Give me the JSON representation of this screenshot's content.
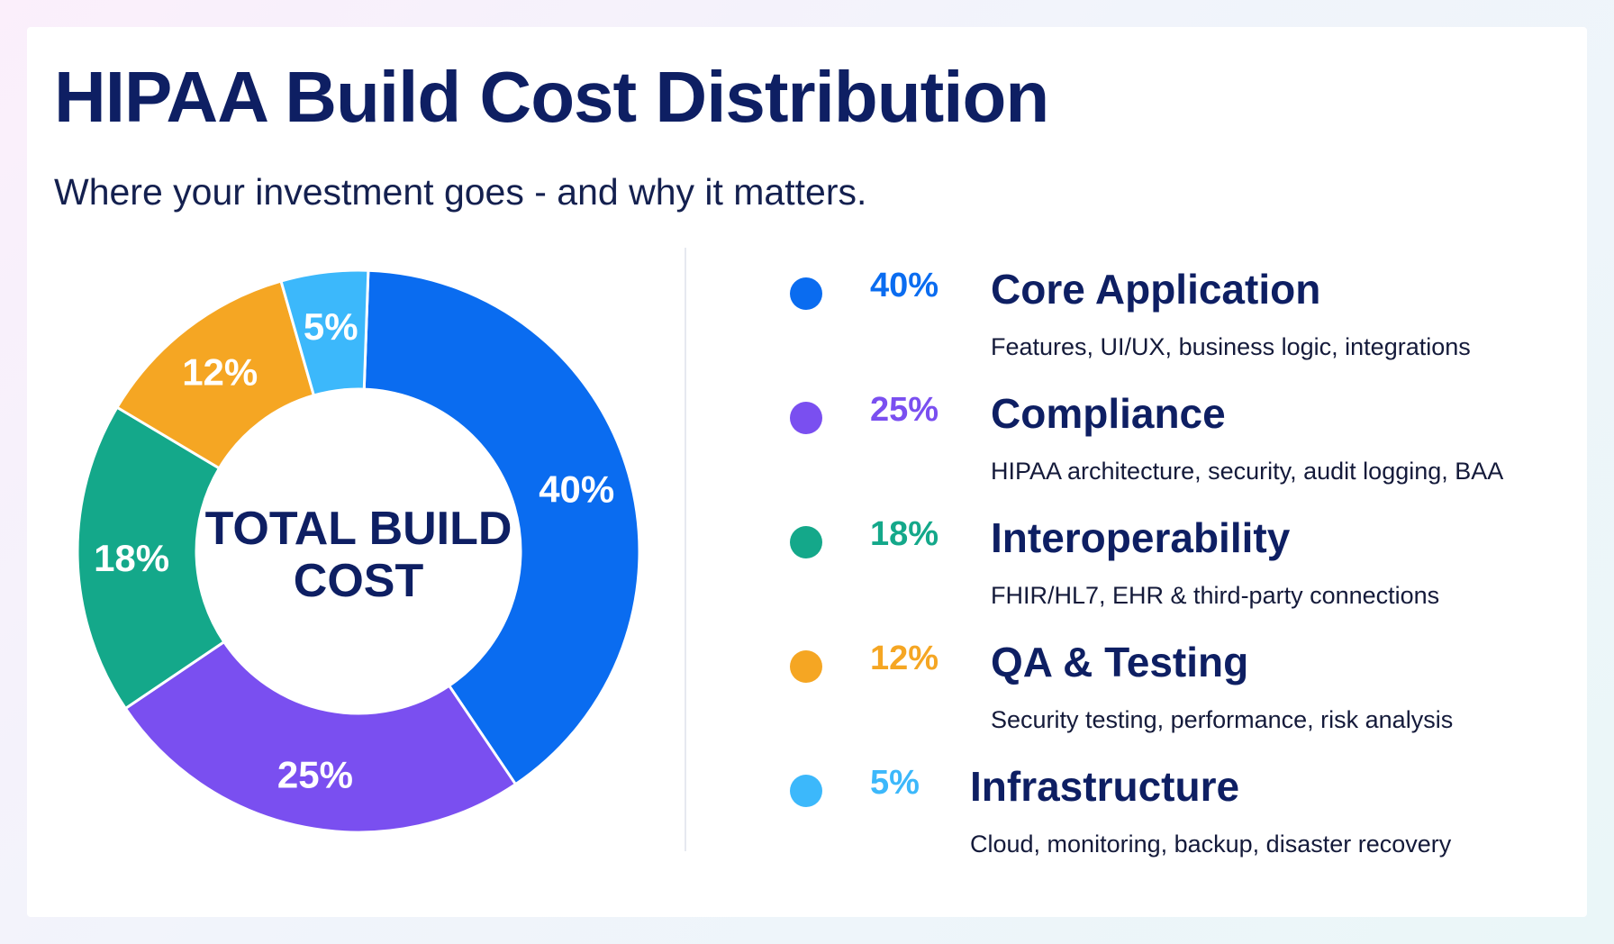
{
  "header": {
    "title": "HIPAA Build Cost Distribution",
    "subtitle": "Where your investment goes - and why it matters."
  },
  "center_label": {
    "line1": "TOTAL BUILD",
    "line2": "COST"
  },
  "chart_data": {
    "type": "pie",
    "title": "HIPAA Build Cost Distribution",
    "subtitle": "Where your investment goes - and why it matters.",
    "categories": [
      "Core Application",
      "Compliance",
      "Interoperability",
      "QA & Testing",
      "Infrastructure"
    ],
    "values": [
      40,
      25,
      18,
      12,
      5
    ],
    "value_labels": [
      "40%",
      "25%",
      "18%",
      "12%",
      "5%"
    ],
    "colors": [
      "#0a6cf0",
      "#7a4ff0",
      "#14a88a",
      "#f5a623",
      "#3cb8fb"
    ],
    "legend_position": "right"
  },
  "legend": [
    {
      "pct": "40%",
      "name": "Core Application",
      "desc": "Features, UI/UX, business logic, integrations",
      "color": "#0a6cf0"
    },
    {
      "pct": "25%",
      "name": "Compliance",
      "desc": "HIPAA architecture, security, audit logging, BAA",
      "color": "#7a4ff0"
    },
    {
      "pct": "18%",
      "name": "Interoperability",
      "desc": "FHIR/HL7, EHR & third-party connections",
      "color": "#14a88a"
    },
    {
      "pct": "12%",
      "name": "QA & Testing",
      "desc": "Security testing, performance, risk analysis",
      "color": "#f5a623"
    },
    {
      "pct": "5%",
      "name": "Infrastructure",
      "desc": "Cloud, monitoring, backup, disaster recovery",
      "color": "#3cb8fb"
    }
  ]
}
